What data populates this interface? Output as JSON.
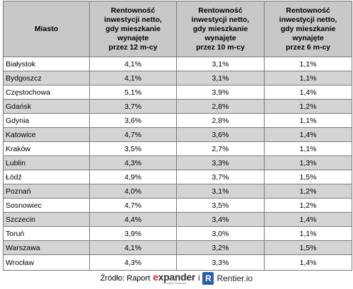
{
  "table": {
    "headers": [
      "Miasto",
      "Rentowność inwestycji netto, gdy mieszkanie wynajęte przez 12 m-cy",
      "Rentowność inwestycji netto, gdy mieszkanie wynajęte przez 10 m-cy",
      "Rentowność inwestycji netto, gdy mieszkanie wynajęte przez 6 m-cy"
    ],
    "header_lines": [
      [
        "Miasto"
      ],
      [
        "Rentowność",
        "inwestycji netto,",
        "gdy mieszkanie",
        "wynajęte",
        "przez 12 m-cy"
      ],
      [
        "Rentowność",
        "inwestycji netto,",
        "gdy mieszkanie",
        "wynajęte",
        "przez 10 m-cy"
      ],
      [
        "Rentowność",
        "inwestycji netto,",
        "gdy mieszkanie",
        "wynajęte",
        "przez 6 m-cy"
      ]
    ],
    "rows": [
      [
        "Białystok",
        "4,1%",
        "3,1%",
        "1,1%"
      ],
      [
        "Bydgoszcz",
        "4,1%",
        "3,1%",
        "1,1%"
      ],
      [
        "Częstochowa",
        "5,1%",
        "3,9%",
        "1,4%"
      ],
      [
        "Gdańsk",
        "3,7%",
        "2,8%",
        "1,2%"
      ],
      [
        "Gdynia",
        "3,6%",
        "2,8%",
        "1,1%"
      ],
      [
        "Katowice",
        "4,7%",
        "3,6%",
        "1,4%"
      ],
      [
        "Kraków",
        "3,5%",
        "2,7%",
        "1,1%"
      ],
      [
        "Lublin",
        "4,3%",
        "3,3%",
        "1,3%"
      ],
      [
        "Łódź",
        "4,9%",
        "3,7%",
        "1,5%"
      ],
      [
        "Poznań",
        "4,0%",
        "3,1%",
        "1,2%"
      ],
      [
        "Sosnowiec",
        "4,7%",
        "3,5%",
        "1,2%"
      ],
      [
        "Szczecin",
        "4,4%",
        "3,4%",
        "1,4%"
      ],
      [
        "Toruń",
        "3,9%",
        "3,0%",
        "1,1%"
      ],
      [
        "Warszawa",
        "4,1%",
        "3,2%",
        "1,5%"
      ],
      [
        "Wrocław",
        "4,3%",
        "3,3%",
        "1,4%"
      ]
    ]
  },
  "footer": {
    "source_label": "Źródło: Raport",
    "expander_logo_e": "e",
    "expander_logo_rest": "xpander",
    "expander_tagline": "Doradcy Finansowi",
    "conjunction": "i",
    "rentier_mark": "R",
    "rentier_name": "Rentier.io"
  },
  "colors": {
    "header_bg": "#c8c8c8",
    "shaded_row_bg": "#d4d4d4",
    "expander_red": "#d0202a",
    "rentier_blue": "#2b5da8"
  }
}
